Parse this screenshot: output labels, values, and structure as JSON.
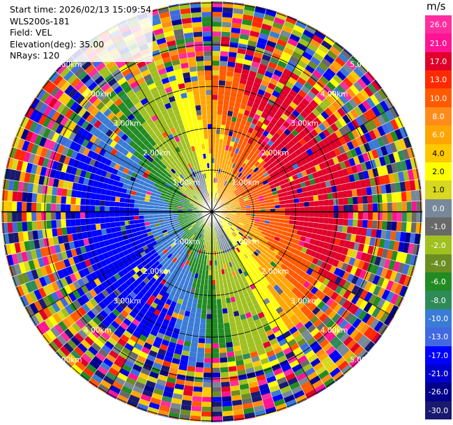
{
  "info": {
    "start_time": "Start time: 2026/02/13 15:09:54",
    "instrument": "WLS200s-181",
    "field": "Field: VEL",
    "elevation": "Elevation(deg): 35.00",
    "nrays": "NRays: 120"
  },
  "colorbar": {
    "unit": "m/s",
    "ticks": [
      "26.0",
      "21.0",
      "17.0",
      "13.0",
      "10.0",
      "8.0",
      "6.0",
      "4.0",
      "2.0",
      "1.0",
      "0.0",
      "-1.0",
      "-2.0",
      "-4.0",
      "-6.0",
      "-8.0",
      "-10.0",
      "-13.0",
      "-17.0",
      "-21.0",
      "-26.0",
      "-30.0"
    ],
    "colors": [
      "#ff2d9e",
      "#ff1493",
      "#e0002a",
      "#ff2a00",
      "#ff5a00",
      "#ff8c1a",
      "#ffa500",
      "#ffc800",
      "#ffff00",
      "#d8d820",
      "#778899",
      "#696969",
      "#a0c020",
      "#6b8e23",
      "#228b22",
      "#2e8b57",
      "#3a7bd5",
      "#4169e1",
      "#0000ff",
      "#0000cd",
      "#00008b",
      "#191970"
    ]
  },
  "ring_labels": {
    "r1": "1.00km",
    "r2": "2.00km",
    "r3": "3.00km",
    "r4": "4.00km",
    "r5": "5.00km"
  }
}
